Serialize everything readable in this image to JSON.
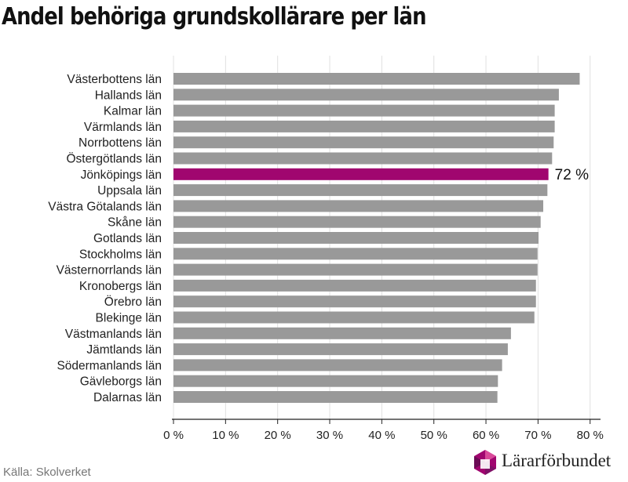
{
  "title": "Andel behöriga grundskollärare per län",
  "source": "Källa: Skolverket",
  "logo": {
    "name": "Lärarförbundet",
    "icon": "lararforbundet-logo-icon"
  },
  "colors": {
    "bar": "#999999",
    "highlight": "#a0066f",
    "grid": "#e0e0e0"
  },
  "chart_data": {
    "type": "bar",
    "orientation": "horizontal",
    "title": "Andel behöriga grundskollärare per län",
    "categories": [
      "Västerbottens län",
      "Hallands län",
      "Kalmar län",
      "Värmlands län",
      "Norrbottens län",
      "Östergötlands län",
      "Jönköpings län",
      "Uppsala län",
      "Västra Götalands län",
      "Skåne län",
      "Gotlands län",
      "Stockholms län",
      "Västernorrlands län",
      "Kronobergs län",
      "Örebro län",
      "Blekinge län",
      "Västmanlands län",
      "Jämtlands län",
      "Södermanlands län",
      "Gävleborgs län",
      "Dalarnas län"
    ],
    "values": [
      78,
      74,
      73.2,
      73.2,
      73,
      72.7,
      72,
      71.8,
      71,
      70.5,
      70.1,
      69.9,
      69.9,
      69.6,
      69.6,
      69.3,
      64.8,
      64.2,
      63.1,
      62.3,
      62.2
    ],
    "highlight_index": 6,
    "highlight_label": "72 %",
    "xlim": [
      0,
      82
    ],
    "xticks": [
      0,
      10,
      20,
      30,
      40,
      50,
      60,
      70,
      80
    ],
    "xtick_labels": [
      "0 %",
      "10 %",
      "20 %",
      "30 %",
      "40 %",
      "50 %",
      "60 %",
      "70 %",
      "80 %"
    ],
    "grid": true,
    "xlabel": "",
    "ylabel": ""
  }
}
